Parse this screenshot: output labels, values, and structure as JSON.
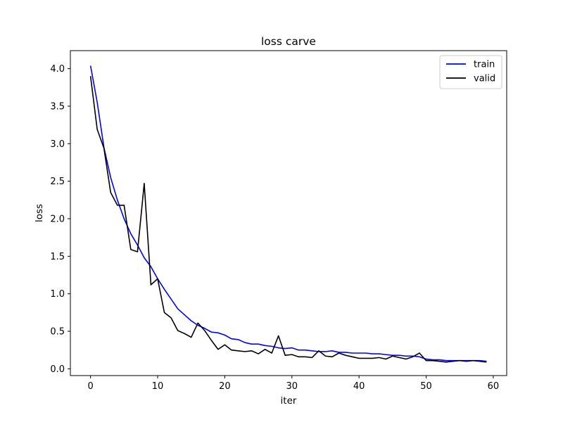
{
  "chart_data": {
    "type": "line",
    "title": "loss carve",
    "xlabel": "iter",
    "ylabel": "loss",
    "xlim": [
      -3,
      62
    ],
    "ylim": [
      -0.09,
      4.24
    ],
    "xticks": [
      0,
      10,
      20,
      30,
      40,
      50,
      60
    ],
    "xtick_labels": [
      "0",
      "10",
      "20",
      "30",
      "40",
      "50",
      "60"
    ],
    "yticks": [
      0.0,
      0.5,
      1.0,
      1.5,
      2.0,
      2.5,
      3.0,
      3.5,
      4.0
    ],
    "ytick_labels": [
      "0.0",
      "0.5",
      "1.0",
      "1.5",
      "2.0",
      "2.5",
      "3.0",
      "3.5",
      "4.0"
    ],
    "grid": false,
    "legend_position": "top-right",
    "series": [
      {
        "name": "train",
        "color": "#0000ff",
        "x": [
          0,
          1,
          2,
          3,
          4,
          5,
          6,
          7,
          8,
          9,
          10,
          11,
          12,
          13,
          14,
          15,
          16,
          17,
          18,
          19,
          20,
          21,
          22,
          23,
          24,
          25,
          26,
          27,
          28,
          29,
          30,
          31,
          32,
          33,
          34,
          35,
          36,
          37,
          38,
          39,
          40,
          41,
          42,
          43,
          44,
          45,
          46,
          47,
          48,
          49,
          50,
          51,
          52,
          53,
          54,
          55,
          56,
          57,
          58,
          59
        ],
        "values": [
          4.04,
          3.55,
          2.95,
          2.55,
          2.25,
          2.0,
          1.8,
          1.65,
          1.48,
          1.36,
          1.2,
          1.06,
          0.93,
          0.8,
          0.72,
          0.64,
          0.58,
          0.54,
          0.49,
          0.48,
          0.45,
          0.4,
          0.39,
          0.35,
          0.33,
          0.33,
          0.31,
          0.3,
          0.28,
          0.27,
          0.28,
          0.25,
          0.25,
          0.24,
          0.23,
          0.23,
          0.24,
          0.22,
          0.22,
          0.21,
          0.21,
          0.21,
          0.2,
          0.2,
          0.19,
          0.18,
          0.18,
          0.17,
          0.17,
          0.16,
          0.13,
          0.12,
          0.12,
          0.11,
          0.11,
          0.11,
          0.11,
          0.11,
          0.11,
          0.1
        ]
      },
      {
        "name": "valid",
        "color": "#000000",
        "x": [
          0,
          1,
          2,
          3,
          4,
          5,
          6,
          7,
          8,
          9,
          10,
          11,
          12,
          13,
          14,
          15,
          16,
          17,
          18,
          19,
          20,
          21,
          22,
          23,
          24,
          25,
          26,
          27,
          28,
          29,
          30,
          31,
          32,
          33,
          34,
          35,
          36,
          37,
          38,
          39,
          40,
          41,
          42,
          43,
          44,
          45,
          46,
          47,
          48,
          49,
          50,
          51,
          52,
          53,
          54,
          55,
          56,
          57,
          58,
          59
        ],
        "values": [
          3.9,
          3.19,
          2.94,
          2.35,
          2.18,
          2.18,
          1.59,
          1.56,
          2.47,
          1.12,
          1.2,
          0.75,
          0.68,
          0.51,
          0.47,
          0.42,
          0.61,
          0.51,
          0.38,
          0.26,
          0.32,
          0.25,
          0.24,
          0.23,
          0.24,
          0.2,
          0.26,
          0.21,
          0.44,
          0.18,
          0.19,
          0.16,
          0.16,
          0.15,
          0.24,
          0.17,
          0.16,
          0.21,
          0.18,
          0.16,
          0.14,
          0.14,
          0.14,
          0.15,
          0.13,
          0.17,
          0.15,
          0.13,
          0.16,
          0.21,
          0.11,
          0.11,
          0.1,
          0.09,
          0.1,
          0.11,
          0.1,
          0.11,
          0.1,
          0.09
        ]
      }
    ]
  }
}
